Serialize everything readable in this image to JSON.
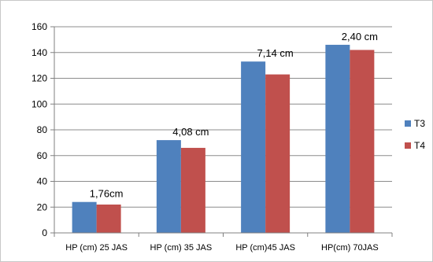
{
  "chart_data": {
    "type": "bar",
    "categories": [
      "HP (cm) 25 JAS",
      "HP (cm)  35 JAS",
      "HP (cm)45 JAS",
      "HP(cm) 70JAS"
    ],
    "series": [
      {
        "name": "T3",
        "values": [
          24,
          72,
          133,
          146
        ],
        "color": "#4f81bd"
      },
      {
        "name": "T4",
        "values": [
          22,
          66,
          123,
          142
        ],
        "color": "#c0504d"
      }
    ],
    "annotations": [
      "1,76cm",
      "4,08 cm",
      "7,14 cm",
      "2,40 cm"
    ],
    "ylim": [
      0,
      160
    ],
    "yticks": [
      0,
      20,
      40,
      60,
      80,
      100,
      120,
      140,
      160
    ],
    "grid": true,
    "legend": "right",
    "title": "",
    "xlabel": "",
    "ylabel": ""
  }
}
